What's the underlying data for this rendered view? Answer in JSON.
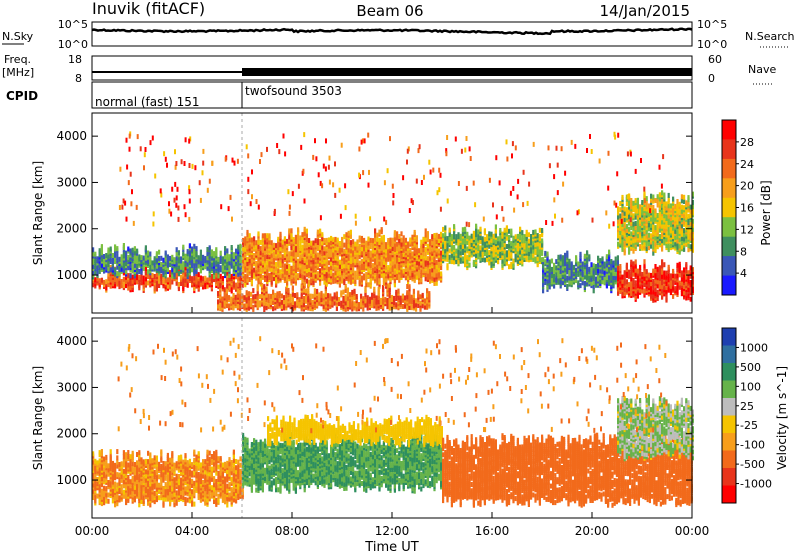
{
  "header": {
    "station": "Inuvik (fitACF)",
    "beam": "Beam 06",
    "date": "14/Jan/2015"
  },
  "noise_panel": {
    "left_label": "N.Sky",
    "left_ticks": [
      "10^5",
      "10^0"
    ],
    "right_label": "N.Search",
    "right_ticks": [
      "10^5",
      "10^0"
    ]
  },
  "freq_panel": {
    "left_label_1": "Freq.",
    "left_label_2": "[MHz]",
    "left_ticks": [
      "18",
      "8"
    ],
    "right_label": "Nave",
    "right_ticks": [
      "60",
      "0"
    ]
  },
  "cpid_panel": {
    "label": "CPID",
    "segments": [
      {
        "name": "normal (fast) 151",
        "start_hour": 0,
        "end_hour": 6
      },
      {
        "name": "twofsound 3503",
        "start_hour": 6,
        "end_hour": 24
      }
    ]
  },
  "x_axis": {
    "label": "Time UT",
    "ticks": [
      "00:00",
      "04:00",
      "08:00",
      "12:00",
      "16:00",
      "20:00",
      "00:00"
    ]
  },
  "power_panel": {
    "ylabel": "Slant Range [km]",
    "yticks": [
      "1000",
      "2000",
      "3000",
      "4000"
    ],
    "colorbar_label": "Power [dB]",
    "colorbar_ticks": [
      "4",
      "8",
      "12",
      "16",
      "20",
      "24",
      "28"
    ],
    "colors": [
      "#1a1aff",
      "#3a57b7",
      "#3f8f5f",
      "#7bc040",
      "#f5c400",
      "#f79e1b",
      "#f26a1b",
      "#e8341b",
      "#ff0000"
    ]
  },
  "velocity_panel": {
    "ylabel": "Slant Range [km]",
    "yticks": [
      "1000",
      "2000",
      "3000",
      "4000"
    ],
    "colorbar_label": "Velocity [m s^-1]",
    "colorbar_ticks": [
      "1000",
      "500",
      "100",
      "25",
      "-25",
      "-100",
      "-500",
      "-1000"
    ],
    "colors": [
      "#1e3fb0",
      "#2f6fa0",
      "#2e8f5e",
      "#66b34a",
      "#bdbdbd",
      "#f5c400",
      "#f79e1b",
      "#f26a1b",
      "#e8341b",
      "#ff0000"
    ]
  },
  "chart_data": {
    "type": "heatmap",
    "x_range_hours": [
      0,
      24
    ],
    "y_range_km": [
      180,
      4500
    ],
    "power_bands": [
      {
        "t": [
          0,
          6
        ],
        "r": [
          700,
          1000
        ],
        "level": 26
      },
      {
        "t": [
          0,
          6
        ],
        "r": [
          1000,
          1450
        ],
        "level": 10
      },
      {
        "t": [
          5,
          13.5
        ],
        "r": [
          200,
          600
        ],
        "level": 24
      },
      {
        "t": [
          6,
          14
        ],
        "r": [
          800,
          1800
        ],
        "level": 22
      },
      {
        "t": [
          14,
          18
        ],
        "r": [
          1200,
          1900
        ],
        "level": 14
      },
      {
        "t": [
          18,
          21
        ],
        "r": [
          700,
          1300
        ],
        "level": 10
      },
      {
        "t": [
          21,
          24
        ],
        "r": [
          500,
          1100
        ],
        "level": 28
      },
      {
        "t": [
          21,
          24
        ],
        "r": [
          1500,
          2600
        ],
        "level": 16
      }
    ],
    "velocity_bands": [
      {
        "t": [
          0,
          6
        ],
        "r": [
          500,
          1450
        ],
        "level": -100
      },
      {
        "t": [
          6,
          14
        ],
        "r": [
          800,
          1800
        ],
        "level": 300
      },
      {
        "t": [
          7,
          14
        ],
        "r": [
          1800,
          2200
        ],
        "level": 0
      },
      {
        "t": [
          14,
          24
        ],
        "r": [
          500,
          1800
        ],
        "level": -200
      },
      {
        "t": [
          21,
          24
        ],
        "r": [
          1500,
          2600
        ],
        "level": 100
      }
    ]
  }
}
